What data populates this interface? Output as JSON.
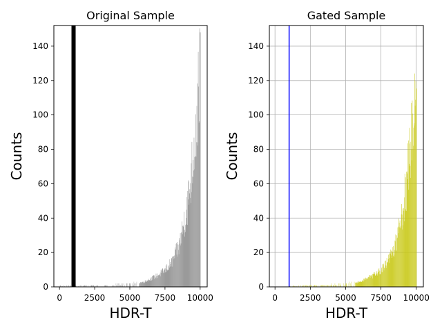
{
  "chart_data": [
    {
      "type": "histogram",
      "title": "Original Sample",
      "xlabel": "HDR-T",
      "ylabel": "Counts",
      "xlim": [
        -400,
        10500
      ],
      "ylim": [
        0,
        152
      ],
      "xticks": [
        0,
        2500,
        5000,
        7500,
        10000
      ],
      "xtick_labels": [
        "0",
        "2500",
        "5000",
        "7500",
        "10000"
      ],
      "yticks": [
        0,
        20,
        40,
        60,
        80,
        100,
        120,
        140
      ],
      "ytick_labels": [
        "0",
        "20",
        "40",
        "60",
        "80",
        "100",
        "120",
        "140"
      ],
      "grid": false,
      "bar_color": "#8c8c8c",
      "vline": {
        "x": 1000,
        "color": "#000000",
        "style": "thick"
      },
      "distribution": {
        "bins": [
          {
            "x": 0,
            "y": 0.5
          },
          {
            "x": 2500,
            "y": 0.7
          },
          {
            "x": 5000,
            "y": 1.5
          },
          {
            "x": 6000,
            "y": 3
          },
          {
            "x": 7000,
            "y": 7
          },
          {
            "x": 7500,
            "y": 10
          },
          {
            "x": 8000,
            "y": 15
          },
          {
            "x": 8500,
            "y": 25
          },
          {
            "x": 9000,
            "y": 45
          },
          {
            "x": 9250,
            "y": 58
          },
          {
            "x": 9500,
            "y": 80
          },
          {
            "x": 9750,
            "y": 100
          },
          {
            "x": 9900,
            "y": 120
          },
          {
            "x": 10000,
            "y": 145
          }
        ]
      }
    },
    {
      "type": "histogram",
      "title": "Gated Sample",
      "xlabel": "HDR-T",
      "ylabel": "Counts",
      "xlim": [
        -400,
        10500
      ],
      "ylim": [
        0,
        152
      ],
      "xticks": [
        0,
        2500,
        5000,
        7500,
        10000
      ],
      "xtick_labels": [
        "0",
        "2500",
        "5000",
        "7500",
        "10000"
      ],
      "yticks": [
        0,
        20,
        40,
        60,
        80,
        100,
        120,
        140
      ],
      "ytick_labels": [
        "0",
        "20",
        "40",
        "60",
        "80",
        "100",
        "120",
        "140"
      ],
      "grid": true,
      "bar_color": "#c8c814",
      "vline": {
        "x": 1000,
        "color": "#0000ff",
        "style": "thin"
      },
      "distribution": {
        "bins": [
          {
            "x": 1000,
            "y": 0.3
          },
          {
            "x": 2500,
            "y": 0.7
          },
          {
            "x": 5000,
            "y": 1.5
          },
          {
            "x": 6000,
            "y": 3
          },
          {
            "x": 7000,
            "y": 7
          },
          {
            "x": 7500,
            "y": 10
          },
          {
            "x": 8000,
            "y": 15
          },
          {
            "x": 8500,
            "y": 25
          },
          {
            "x": 9000,
            "y": 45
          },
          {
            "x": 9250,
            "y": 58
          },
          {
            "x": 9500,
            "y": 80
          },
          {
            "x": 9750,
            "y": 100
          },
          {
            "x": 9900,
            "y": 120
          },
          {
            "x": 10000,
            "y": 132
          }
        ]
      }
    }
  ]
}
